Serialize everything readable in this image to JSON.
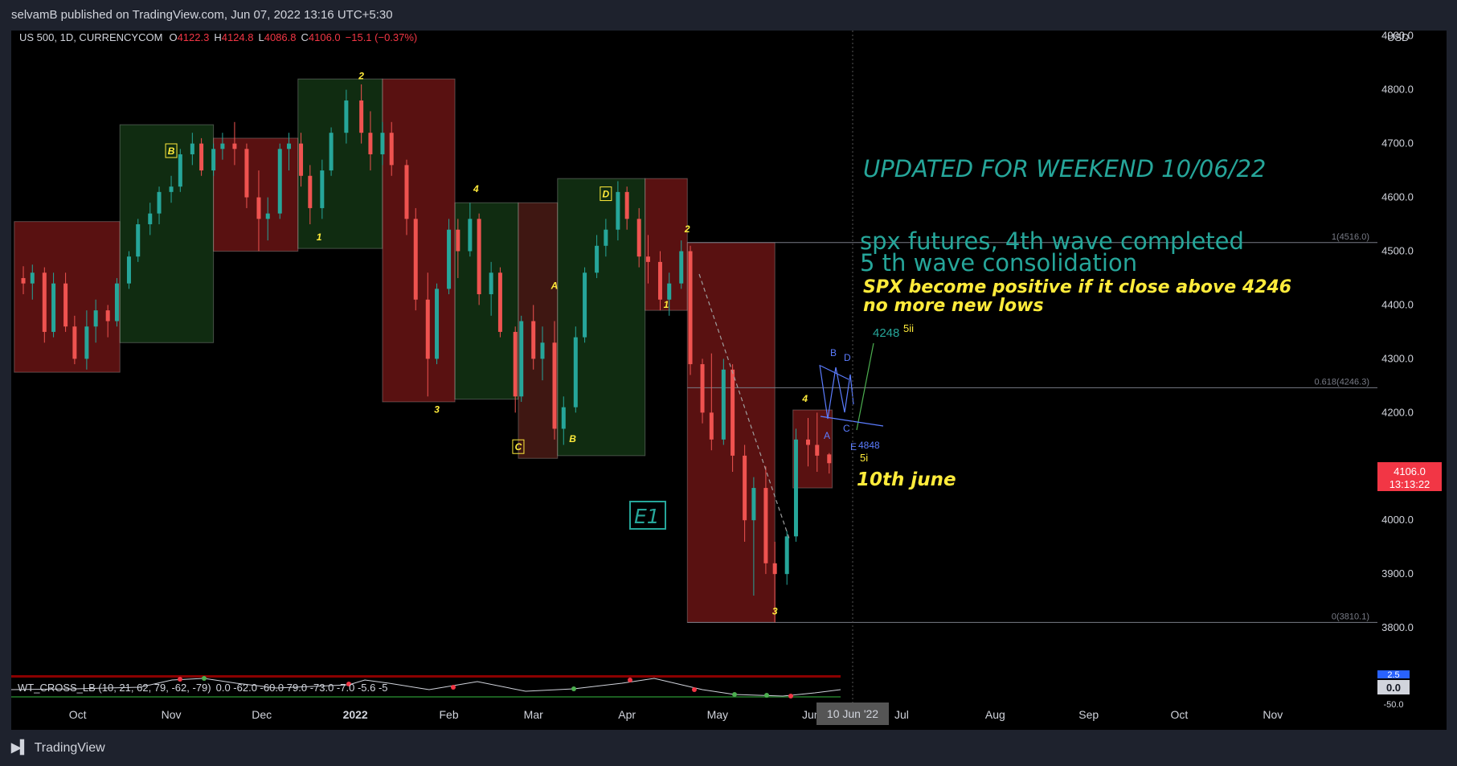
{
  "header": {
    "published": "selvamB published on TradingView.com, Jun 07, 2022 13:16 UTC+5:30"
  },
  "footer": {
    "brand": "TradingView",
    "logo": "tradingview-logo-icon"
  },
  "legend": {
    "symbol": "US 500, 1D, CURRENCYCOM",
    "o_label": "O",
    "o_val": "4122.3",
    "h_label": "H",
    "h_val": "4124.8",
    "l_label": "L",
    "l_val": "4086.8",
    "c_label": "C",
    "c_val": "4106.0",
    "change": "−15.1 (−0.37%)"
  },
  "axis": {
    "currency": "USD",
    "price_label": "4106.0",
    "price_time": "13:13:22",
    "cursor_date": "10 Jun '22",
    "indicator_vals": [
      "2.5",
      "0.0",
      "-50.0"
    ]
  },
  "annotations": {
    "title": "UPDATED FOR WEEKEND 10/06/22",
    "line1": "spx futures, 4th wave completed",
    "line2": "5 th wave consolidation",
    "line3": "SPX become positive if it close above 4246",
    "line4": "no more new lows",
    "date_note": "10th june",
    "e1": "E1",
    "target": "4248",
    "l_5ii": "5ii",
    "l_5i": "5i",
    "l_4848": "4848",
    "fib_1": "1(4516.0)",
    "fib_618": "0.618(4246.3)",
    "fib_0": "0(3810.1)"
  },
  "indicator": {
    "label": "WT_CROSS_LB (10, 21, 62, 79, -62, -79)",
    "values": "0.0 -62.0 -60.0 79.0 -73.0 -7.0 -5.6 -5"
  },
  "chart_data": {
    "type": "candlestick",
    "x_ticks": [
      "Oct",
      "Nov",
      "Dec",
      "2022",
      "Feb",
      "Mar",
      "Apr",
      "May",
      "Jun",
      "Jul",
      "Aug",
      "Sep",
      "Oct",
      "Nov"
    ],
    "y_ticks": [
      3800,
      3900,
      4000,
      4100,
      4200,
      4300,
      4400,
      4500,
      4600,
      4700,
      4800,
      4900
    ],
    "y_tick_labels": [
      "3800.0",
      "3900.0",
      "4000.0",
      "4100.0",
      "4200.0",
      "4300.0",
      "4400.0",
      "4500.0",
      "4600.0",
      "4700.0",
      "4800.0",
      "4900.0"
    ],
    "ylim": [
      3730,
      4910
    ],
    "fib_levels": [
      {
        "label": "1(4516.0)",
        "value": 4516.0
      },
      {
        "label": "0.618(4246.3)",
        "value": 4246.3
      },
      {
        "label": "0(3810.1)",
        "value": 3810.1
      }
    ],
    "wave_labels": [
      {
        "text": "B",
        "boxed": true,
        "date": "2021-11-01",
        "price": 4680
      },
      {
        "text": "1",
        "date": "2021-12-20",
        "price": 4520
      },
      {
        "text": "2",
        "date": "2022-01-03",
        "price": 4820
      },
      {
        "text": "3",
        "date": "2022-01-28",
        "price": 4200
      },
      {
        "text": "4",
        "date": "2022-02-10",
        "price": 4610
      },
      {
        "text": "C",
        "boxed": true,
        "date": "2022-02-24",
        "price": 4130
      },
      {
        "text": "A",
        "date": "2022-03-08",
        "price": 4430
      },
      {
        "text": "B",
        "date": "2022-03-14",
        "price": 4145
      },
      {
        "text": "D",
        "boxed": true,
        "date": "2022-03-25",
        "price": 4600
      },
      {
        "text": "1",
        "date": "2022-04-14",
        "price": 4395
      },
      {
        "text": "2",
        "date": "2022-04-21",
        "price": 4535
      },
      {
        "text": "3",
        "date": "2022-05-20",
        "price": 3825
      },
      {
        "text": "4",
        "date": "2022-05-30",
        "price": 4220
      }
    ],
    "shaded_boxes": [
      {
        "color": "red",
        "from": "2021-09-10",
        "to": "2021-10-15",
        "low": 4275,
        "high": 4555
      },
      {
        "color": "green",
        "from": "2021-10-15",
        "to": "2021-11-15",
        "low": 4330,
        "high": 4735
      },
      {
        "color": "red",
        "from": "2021-11-15",
        "to": "2021-12-13",
        "low": 4500,
        "high": 4710
      },
      {
        "color": "green",
        "from": "2021-12-13",
        "to": "2022-01-10",
        "low": 4505,
        "high": 4820
      },
      {
        "color": "red",
        "from": "2022-01-10",
        "to": "2022-02-03",
        "low": 4220,
        "high": 4820
      },
      {
        "color": "green",
        "from": "2022-02-03",
        "to": "2022-02-24",
        "low": 4225,
        "high": 4590
      },
      {
        "color": "brown",
        "from": "2022-02-24",
        "to": "2022-03-09",
        "low": 4115,
        "high": 4590
      },
      {
        "color": "green",
        "from": "2022-03-09",
        "to": "2022-04-07",
        "low": 4120,
        "high": 4635
      },
      {
        "color": "red",
        "from": "2022-04-07",
        "to": "2022-04-21",
        "low": 4390,
        "high": 4635
      },
      {
        "color": "red",
        "from": "2022-04-21",
        "to": "2022-05-20",
        "low": 3810,
        "high": 4516
      },
      {
        "color": "red",
        "from": "2022-05-26",
        "to": "2022-06-08",
        "low": 4060,
        "high": 4205
      }
    ],
    "candles": [
      [
        "2021-09-13",
        4450,
        4472,
        4420,
        4440
      ],
      [
        "2021-09-16",
        4440,
        4475,
        4410,
        4460
      ],
      [
        "2021-09-20",
        4460,
        4470,
        4330,
        4350
      ],
      [
        "2021-09-23",
        4350,
        4460,
        4340,
        4440
      ],
      [
        "2021-09-27",
        4440,
        4460,
        4350,
        4360
      ],
      [
        "2021-09-30",
        4360,
        4380,
        4290,
        4300
      ],
      [
        "2021-10-04",
        4300,
        4390,
        4280,
        4360
      ],
      [
        "2021-10-07",
        4360,
        4410,
        4330,
        4390
      ],
      [
        "2021-10-11",
        4390,
        4400,
        4340,
        4370
      ],
      [
        "2021-10-14",
        4370,
        4450,
        4360,
        4440
      ],
      [
        "2021-10-18",
        4440,
        4500,
        4430,
        4490
      ],
      [
        "2021-10-21",
        4490,
        4560,
        4480,
        4550
      ],
      [
        "2021-10-25",
        4550,
        4590,
        4530,
        4570
      ],
      [
        "2021-10-28",
        4570,
        4620,
        4550,
        4610
      ],
      [
        "2021-11-01",
        4610,
        4640,
        4590,
        4620
      ],
      [
        "2021-11-04",
        4620,
        4690,
        4610,
        4680
      ],
      [
        "2021-11-08",
        4680,
        4720,
        4660,
        4700
      ],
      [
        "2021-11-11",
        4700,
        4710,
        4640,
        4650
      ],
      [
        "2021-11-15",
        4650,
        4700,
        4640,
        4690
      ],
      [
        "2021-11-18",
        4690,
        4720,
        4670,
        4700
      ],
      [
        "2021-11-22",
        4700,
        4740,
        4660,
        4690
      ],
      [
        "2021-11-26",
        4690,
        4700,
        4580,
        4600
      ],
      [
        "2021-11-30",
        4600,
        4650,
        4500,
        4560
      ],
      [
        "2021-12-03",
        4560,
        4600,
        4520,
        4570
      ],
      [
        "2021-12-07",
        4570,
        4700,
        4560,
        4690
      ],
      [
        "2021-12-10",
        4690,
        4720,
        4650,
        4700
      ],
      [
        "2021-12-14",
        4700,
        4720,
        4620,
        4640
      ],
      [
        "2021-12-17",
        4640,
        4660,
        4550,
        4580
      ],
      [
        "2021-12-21",
        4580,
        4670,
        4560,
        4650
      ],
      [
        "2021-12-24",
        4650,
        4730,
        4640,
        4720
      ],
      [
        "2021-12-29",
        4720,
        4800,
        4700,
        4780
      ],
      [
        "2022-01-03",
        4780,
        4810,
        4700,
        4720
      ],
      [
        "2022-01-06",
        4720,
        4760,
        4650,
        4680
      ],
      [
        "2022-01-10",
        4680,
        4740,
        4660,
        4720
      ],
      [
        "2022-01-13",
        4720,
        4740,
        4640,
        4660
      ],
      [
        "2022-01-18",
        4660,
        4670,
        4530,
        4560
      ],
      [
        "2022-01-21",
        4560,
        4580,
        4390,
        4410
      ],
      [
        "2022-01-25",
        4410,
        4460,
        4230,
        4300
      ],
      [
        "2022-01-28",
        4300,
        4440,
        4290,
        4430
      ],
      [
        "2022-02-01",
        4430,
        4560,
        4420,
        4540
      ],
      [
        "2022-02-04",
        4540,
        4560,
        4450,
        4500
      ],
      [
        "2022-02-08",
        4500,
        4590,
        4490,
        4560
      ],
      [
        "2022-02-11",
        4560,
        4570,
        4400,
        4420
      ],
      [
        "2022-02-15",
        4420,
        4480,
        4380,
        4460
      ],
      [
        "2022-02-18",
        4460,
        4470,
        4340,
        4350
      ],
      [
        "2022-02-23",
        4350,
        4360,
        4200,
        4230
      ],
      [
        "2022-02-25",
        4230,
        4380,
        4220,
        4370
      ],
      [
        "2022-03-01",
        4370,
        4400,
        4280,
        4300
      ],
      [
        "2022-03-04",
        4300,
        4360,
        4260,
        4330
      ],
      [
        "2022-03-08",
        4330,
        4370,
        4150,
        4170
      ],
      [
        "2022-03-11",
        4170,
        4230,
        4140,
        4210
      ],
      [
        "2022-03-15",
        4210,
        4360,
        4200,
        4340
      ],
      [
        "2022-03-18",
        4340,
        4470,
        4330,
        4460
      ],
      [
        "2022-03-22",
        4460,
        4530,
        4450,
        4510
      ],
      [
        "2022-03-25",
        4510,
        4560,
        4490,
        4540
      ],
      [
        "2022-03-29",
        4540,
        4630,
        4520,
        4610
      ],
      [
        "2022-04-01",
        4610,
        4620,
        4540,
        4560
      ],
      [
        "2022-04-05",
        4560,
        4580,
        4470,
        4490
      ],
      [
        "2022-04-08",
        4490,
        4530,
        4440,
        4480
      ],
      [
        "2022-04-12",
        4480,
        4500,
        4390,
        4410
      ],
      [
        "2022-04-15",
        4410,
        4460,
        4380,
        4440
      ],
      [
        "2022-04-19",
        4440,
        4520,
        4430,
        4500
      ],
      [
        "2022-04-22",
        4500,
        4510,
        4270,
        4290
      ],
      [
        "2022-04-26",
        4290,
        4300,
        4180,
        4200
      ],
      [
        "2022-04-29",
        4200,
        4310,
        4130,
        4150
      ],
      [
        "2022-05-03",
        4150,
        4300,
        4140,
        4280
      ],
      [
        "2022-05-06",
        4280,
        4290,
        4090,
        4120
      ],
      [
        "2022-05-10",
        4120,
        4140,
        3960,
        4000
      ],
      [
        "2022-05-13",
        4000,
        4080,
        3860,
        4060
      ],
      [
        "2022-05-17",
        4060,
        4100,
        3900,
        3920
      ],
      [
        "2022-05-20",
        3920,
        3960,
        3810,
        3900
      ],
      [
        "2022-05-24",
        3900,
        3980,
        3880,
        3970
      ],
      [
        "2022-05-27",
        3970,
        4170,
        3960,
        4150
      ],
      [
        "2022-05-31",
        4150,
        4190,
        4100,
        4140
      ],
      [
        "2022-06-03",
        4140,
        4200,
        4090,
        4120
      ],
      [
        "2022-06-07",
        4122.3,
        4124.8,
        4086.8,
        4106.0
      ]
    ]
  }
}
